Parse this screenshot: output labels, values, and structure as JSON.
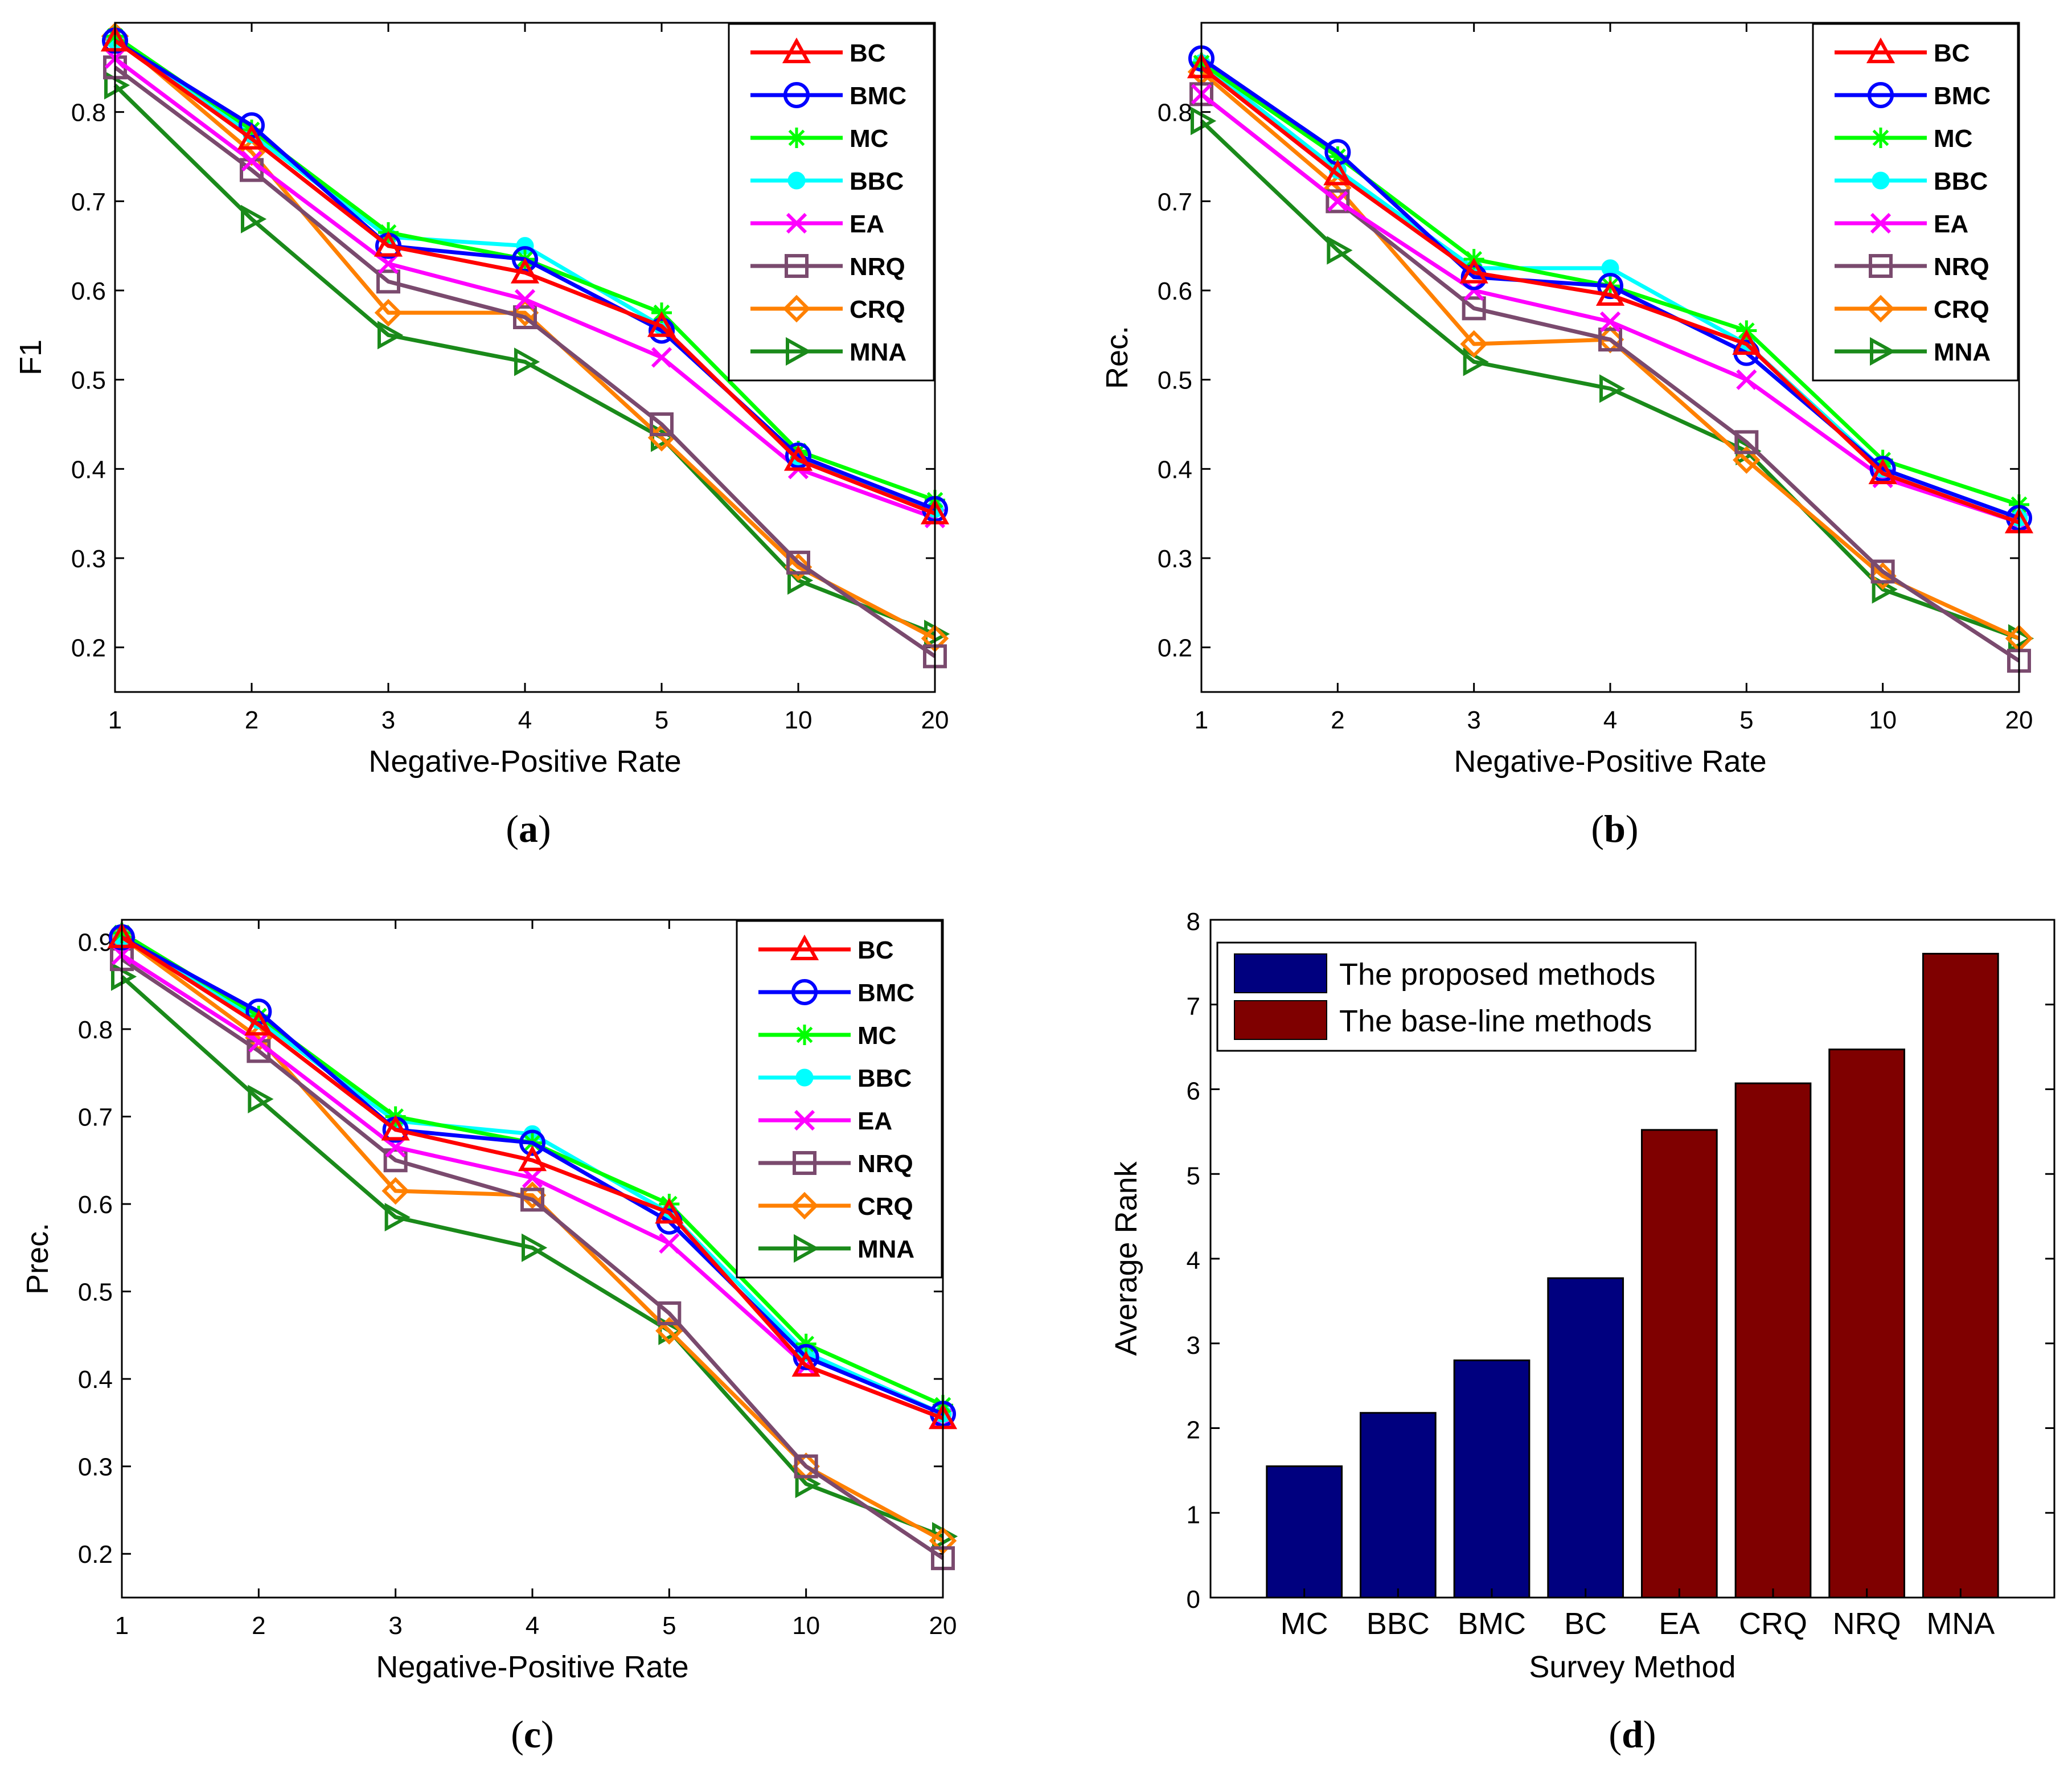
{
  "colors": {
    "BC": "#ff0000",
    "BMC": "#0000ff",
    "MC": "#00ff00",
    "BBC": "#00ffff",
    "EA": "#ff00ff",
    "NRQ": "#7a4a6e",
    "CRQ": "#ff8000",
    "MNA": "#1a8a1a",
    "proposed": "#00007f",
    "baseline": "#7f0000"
  },
  "markers": {
    "BC": "triangle-up",
    "BMC": "circle",
    "MC": "asterisk",
    "BBC": "filled-circle",
    "EA": "x-cross",
    "NRQ": "square",
    "CRQ": "diamond",
    "MNA": "triangle-right"
  },
  "chart_data": [
    {
      "id": "a",
      "type": "line",
      "caption_open": "(",
      "caption_letter": "a",
      "caption_close": ")",
      "xlabel": "Negative-Positive Rate",
      "ylabel": "F1",
      "categories": [
        "1",
        "2",
        "3",
        "4",
        "5",
        "10",
        "20"
      ],
      "ylim": [
        0.15,
        0.9
      ],
      "yticks": [
        "0.2",
        "0.3",
        "0.4",
        "0.5",
        "0.6",
        "0.7",
        "0.8"
      ],
      "legend_position": "top-right",
      "series": [
        {
          "name": "BC",
          "values": [
            0.88,
            0.77,
            0.65,
            0.62,
            0.56,
            0.41,
            0.35
          ]
        },
        {
          "name": "BMC",
          "values": [
            0.88,
            0.785,
            0.65,
            0.635,
            0.555,
            0.415,
            0.355
          ]
        },
        {
          "name": "MC",
          "values": [
            0.885,
            0.78,
            0.665,
            0.635,
            0.575,
            0.42,
            0.365
          ]
        },
        {
          "name": "BBC",
          "values": [
            0.88,
            0.775,
            0.66,
            0.65,
            0.56,
            0.41,
            0.355
          ]
        },
        {
          "name": "EA",
          "values": [
            0.86,
            0.745,
            0.63,
            0.59,
            0.525,
            0.4,
            0.345
          ]
        },
        {
          "name": "NRQ",
          "values": [
            0.85,
            0.735,
            0.61,
            0.57,
            0.45,
            0.295,
            0.19
          ]
        },
        {
          "name": "CRQ",
          "values": [
            0.885,
            0.755,
            0.575,
            0.575,
            0.435,
            0.29,
            0.21
          ]
        },
        {
          "name": "MNA",
          "values": [
            0.83,
            0.68,
            0.55,
            0.52,
            0.435,
            0.275,
            0.215
          ]
        }
      ]
    },
    {
      "id": "b",
      "type": "line",
      "caption_open": "(",
      "caption_letter": "b",
      "caption_close": ")",
      "xlabel": "Negative-Positive Rate",
      "ylabel": "Rec.",
      "categories": [
        "1",
        "2",
        "3",
        "4",
        "5",
        "10",
        "20"
      ],
      "ylim": [
        0.15,
        0.9
      ],
      "yticks": [
        "0.2",
        "0.3",
        "0.4",
        "0.5",
        "0.6",
        "0.7",
        "0.8"
      ],
      "legend_position": "top-right",
      "series": [
        {
          "name": "BC",
          "values": [
            0.85,
            0.73,
            0.62,
            0.595,
            0.54,
            0.395,
            0.34
          ]
        },
        {
          "name": "BMC",
          "values": [
            0.86,
            0.755,
            0.615,
            0.605,
            0.53,
            0.4,
            0.345
          ]
        },
        {
          "name": "MC",
          "values": [
            0.855,
            0.75,
            0.635,
            0.605,
            0.555,
            0.41,
            0.36
          ]
        },
        {
          "name": "BBC",
          "values": [
            0.855,
            0.735,
            0.625,
            0.625,
            0.54,
            0.4,
            0.345
          ]
        },
        {
          "name": "EA",
          "values": [
            0.82,
            0.7,
            0.6,
            0.565,
            0.5,
            0.39,
            0.34
          ]
        },
        {
          "name": "NRQ",
          "values": [
            0.82,
            0.7,
            0.58,
            0.545,
            0.43,
            0.285,
            0.185
          ]
        },
        {
          "name": "CRQ",
          "values": [
            0.845,
            0.715,
            0.54,
            0.545,
            0.41,
            0.28,
            0.21
          ]
        },
        {
          "name": "MNA",
          "values": [
            0.79,
            0.645,
            0.52,
            0.49,
            0.42,
            0.265,
            0.21
          ]
        }
      ]
    },
    {
      "id": "c",
      "type": "line",
      "caption_open": "(",
      "caption_letter": "c",
      "caption_close": ")",
      "xlabel": "Negative-Positive Rate",
      "ylabel": "Prec.",
      "categories": [
        "1",
        "2",
        "3",
        "4",
        "5",
        "10",
        "20"
      ],
      "ylim": [
        0.15,
        0.925
      ],
      "yticks": [
        "0.2",
        "0.3",
        "0.4",
        "0.5",
        "0.6",
        "0.7",
        "0.8",
        "0.9"
      ],
      "legend_position": "top-right",
      "series": [
        {
          "name": "BC",
          "values": [
            0.905,
            0.805,
            0.685,
            0.65,
            0.59,
            0.415,
            0.355
          ]
        },
        {
          "name": "BMC",
          "values": [
            0.905,
            0.82,
            0.685,
            0.67,
            0.58,
            0.425,
            0.36
          ]
        },
        {
          "name": "MC",
          "values": [
            0.91,
            0.815,
            0.7,
            0.67,
            0.6,
            0.44,
            0.37
          ]
        },
        {
          "name": "BBC",
          "values": [
            0.905,
            0.81,
            0.695,
            0.68,
            0.59,
            0.43,
            0.36
          ]
        },
        {
          "name": "EA",
          "values": [
            0.885,
            0.785,
            0.665,
            0.63,
            0.555,
            0.415,
            0.355
          ]
        },
        {
          "name": "NRQ",
          "values": [
            0.88,
            0.775,
            0.65,
            0.605,
            0.475,
            0.3,
            0.195
          ]
        },
        {
          "name": "CRQ",
          "values": [
            0.905,
            0.79,
            0.615,
            0.61,
            0.455,
            0.3,
            0.215
          ]
        },
        {
          "name": "MNA",
          "values": [
            0.86,
            0.72,
            0.585,
            0.55,
            0.455,
            0.28,
            0.22
          ]
        }
      ]
    },
    {
      "id": "d",
      "type": "bar",
      "caption_open": "(",
      "caption_letter": "d",
      "caption_close": ")",
      "xlabel": "Survey Method",
      "ylabel": "Average Rank",
      "categories": [
        "MC",
        "BBC",
        "BMC",
        "BC",
        "EA",
        "CRQ",
        "NRQ",
        "MNA"
      ],
      "values": [
        1.55,
        2.18,
        2.8,
        3.77,
        5.52,
        6.07,
        6.47,
        7.6
      ],
      "groups": [
        "proposed",
        "proposed",
        "proposed",
        "proposed",
        "baseline",
        "baseline",
        "baseline",
        "baseline"
      ],
      "ylim": [
        0,
        8
      ],
      "yticks": [
        "0",
        "1",
        "2",
        "3",
        "4",
        "5",
        "6",
        "7",
        "8"
      ],
      "legend_position": "top-left",
      "legend": [
        {
          "key": "proposed",
          "label": "The proposed methods"
        },
        {
          "key": "baseline",
          "label": "The base-line methods"
        }
      ]
    }
  ]
}
